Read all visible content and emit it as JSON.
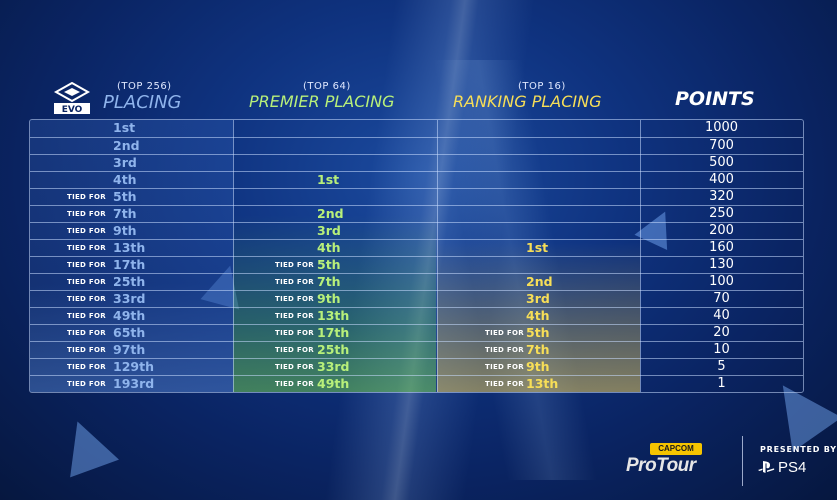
{
  "header": {
    "placing": {
      "sub": "(TOP 256)",
      "label": "PLACING"
    },
    "premier": {
      "sub": "(TOP 64)",
      "label": "PREMIER PLACING"
    },
    "ranking": {
      "sub": "(TOP 16)",
      "label": "RANKING PLACING"
    },
    "points": {
      "label": "POINTS"
    },
    "logo_text": "EVO"
  },
  "tied_label": "TIED FOR",
  "rows": [
    {
      "placing": "1st",
      "placing_tied": false,
      "premier": "",
      "premier_tied": false,
      "ranking": "",
      "ranking_tied": false,
      "points": "1000"
    },
    {
      "placing": "2nd",
      "placing_tied": false,
      "premier": "",
      "premier_tied": false,
      "ranking": "",
      "ranking_tied": false,
      "points": "700"
    },
    {
      "placing": "3rd",
      "placing_tied": false,
      "premier": "",
      "premier_tied": false,
      "ranking": "",
      "ranking_tied": false,
      "points": "500"
    },
    {
      "placing": "4th",
      "placing_tied": false,
      "premier": "1st",
      "premier_tied": false,
      "ranking": "",
      "ranking_tied": false,
      "points": "400"
    },
    {
      "placing": "5th",
      "placing_tied": true,
      "premier": "",
      "premier_tied": false,
      "ranking": "",
      "ranking_tied": false,
      "points": "320"
    },
    {
      "placing": "7th",
      "placing_tied": true,
      "premier": "2nd",
      "premier_tied": false,
      "ranking": "",
      "ranking_tied": false,
      "points": "250"
    },
    {
      "placing": "9th",
      "placing_tied": true,
      "premier": "3rd",
      "premier_tied": false,
      "ranking": "",
      "ranking_tied": false,
      "points": "200"
    },
    {
      "placing": "13th",
      "placing_tied": true,
      "premier": "4th",
      "premier_tied": false,
      "ranking": "1st",
      "ranking_tied": false,
      "points": "160"
    },
    {
      "placing": "17th",
      "placing_tied": true,
      "premier": "5th",
      "premier_tied": true,
      "ranking": "",
      "ranking_tied": false,
      "points": "130"
    },
    {
      "placing": "25th",
      "placing_tied": true,
      "premier": "7th",
      "premier_tied": true,
      "ranking": "2nd",
      "ranking_tied": false,
      "points": "100"
    },
    {
      "placing": "33rd",
      "placing_tied": true,
      "premier": "9th",
      "premier_tied": true,
      "ranking": "3rd",
      "ranking_tied": false,
      "points": "70"
    },
    {
      "placing": "49th",
      "placing_tied": true,
      "premier": "13th",
      "premier_tied": true,
      "ranking": "4th",
      "ranking_tied": false,
      "points": "40"
    },
    {
      "placing": "65th",
      "placing_tied": true,
      "premier": "17th",
      "premier_tied": true,
      "ranking": "5th",
      "ranking_tied": true,
      "points": "20"
    },
    {
      "placing": "97th",
      "placing_tied": true,
      "premier": "25th",
      "premier_tied": true,
      "ranking": "7th",
      "ranking_tied": true,
      "points": "10"
    },
    {
      "placing": "129th",
      "placing_tied": true,
      "premier": "33rd",
      "premier_tied": true,
      "ranking": "9th",
      "ranking_tied": true,
      "points": "5"
    },
    {
      "placing": "193rd",
      "placing_tied": true,
      "premier": "49th",
      "premier_tied": true,
      "ranking": "13th",
      "ranking_tied": true,
      "points": "1"
    }
  ],
  "footer": {
    "capcom": "CAPCOM",
    "protour": "ProTour",
    "presented_by": "PRESENTED BY",
    "ps4": "PS4"
  },
  "colors": {
    "placing": "#8fb4ec",
    "premier": "#b8f07a",
    "ranking": "#f7de57",
    "points": "#ffffff"
  }
}
